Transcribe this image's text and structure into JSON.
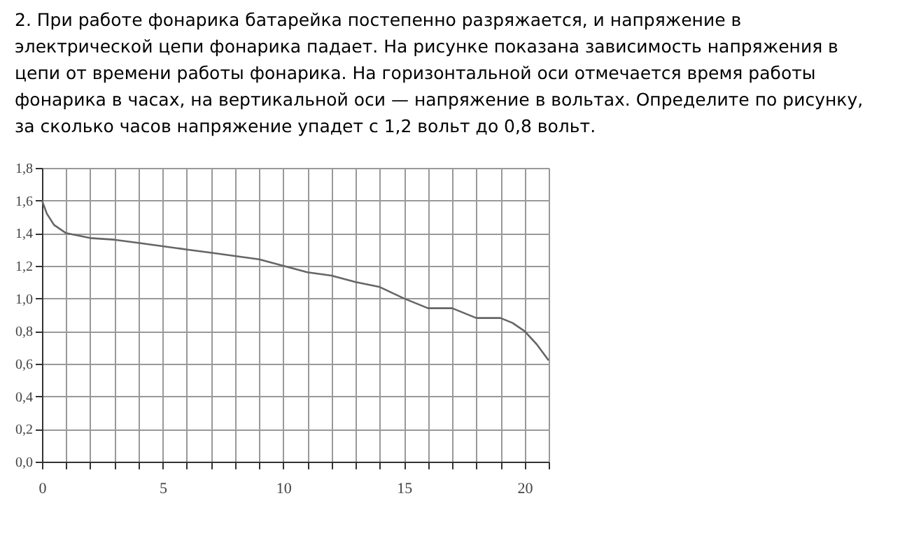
{
  "chart_data": {
    "type": "line",
    "title": "2. При работе фонарика батарейка постепенно разряжается, и напряжение в электрической цепи фонарика падает. На рисунке показана зависимость напряжения в цепи от времени работы фонарика. На горизонтальной оси отмечается время работы фонарика в часах, на вертикальной оси — напряжение в вольтах. Определите по рисунку, за сколько часов напряжение упадет с  1,2 вольт до 0,8 вольт.",
    "x": [
      0,
      0.2,
      0.5,
      1,
      2,
      3,
      4,
      5,
      6,
      7,
      8,
      9,
      10,
      11,
      12,
      13,
      14,
      15,
      16,
      17,
      18,
      19,
      19.5,
      20,
      20.5,
      21
    ],
    "series": [
      {
        "color": "#666666",
        "values": [
          1.6,
          1.52,
          1.45,
          1.4,
          1.37,
          1.36,
          1.34,
          1.32,
          1.3,
          1.28,
          1.26,
          1.24,
          1.2,
          1.16,
          1.14,
          1.1,
          1.07,
          1.0,
          0.94,
          0.94,
          0.88,
          0.88,
          0.85,
          0.8,
          0.72,
          0.62
        ]
      }
    ],
    "xlim": [
      0,
      21
    ],
    "xticks": [
      0,
      {
        "value": 1,
        "label": null
      },
      {
        "value": 2,
        "label": null
      },
      {
        "value": 3,
        "label": null
      },
      {
        "value": 4,
        "label": null
      },
      5,
      {
        "value": 6,
        "label": null
      },
      {
        "value": 7,
        "label": null
      },
      {
        "value": 8,
        "label": null
      },
      {
        "value": 9,
        "label": null
      },
      10,
      {
        "value": 11,
        "label": null
      },
      {
        "value": 12,
        "label": null
      },
      {
        "value": 13,
        "label": null
      },
      {
        "value": 14,
        "label": null
      },
      15,
      {
        "value": 16,
        "label": null
      },
      {
        "value": 17,
        "label": null
      },
      {
        "value": 18,
        "label": null
      },
      {
        "value": 19,
        "label": null
      },
      20,
      {
        "value": 21,
        "label": null
      }
    ],
    "ylim": [
      0,
      1.8
    ],
    "yticks": [
      {
        "value": 0,
        "label": "0,0"
      },
      {
        "value": 0.2,
        "label": "0,2"
      },
      {
        "value": 0.4,
        "label": "0,4"
      },
      {
        "value": 0.6,
        "label": "0,6"
      },
      {
        "value": 0.8,
        "label": "0,8"
      },
      {
        "value": 1.0,
        "label": "1,0"
      },
      {
        "value": 1.2,
        "label": "1,2"
      },
      {
        "value": 1.4,
        "label": "1,4"
      },
      {
        "value": 1.6,
        "label": "1,6"
      },
      {
        "value": 1.8,
        "label": "1,8"
      }
    ],
    "grid": true,
    "marker": "none",
    "line_style": "solid"
  }
}
